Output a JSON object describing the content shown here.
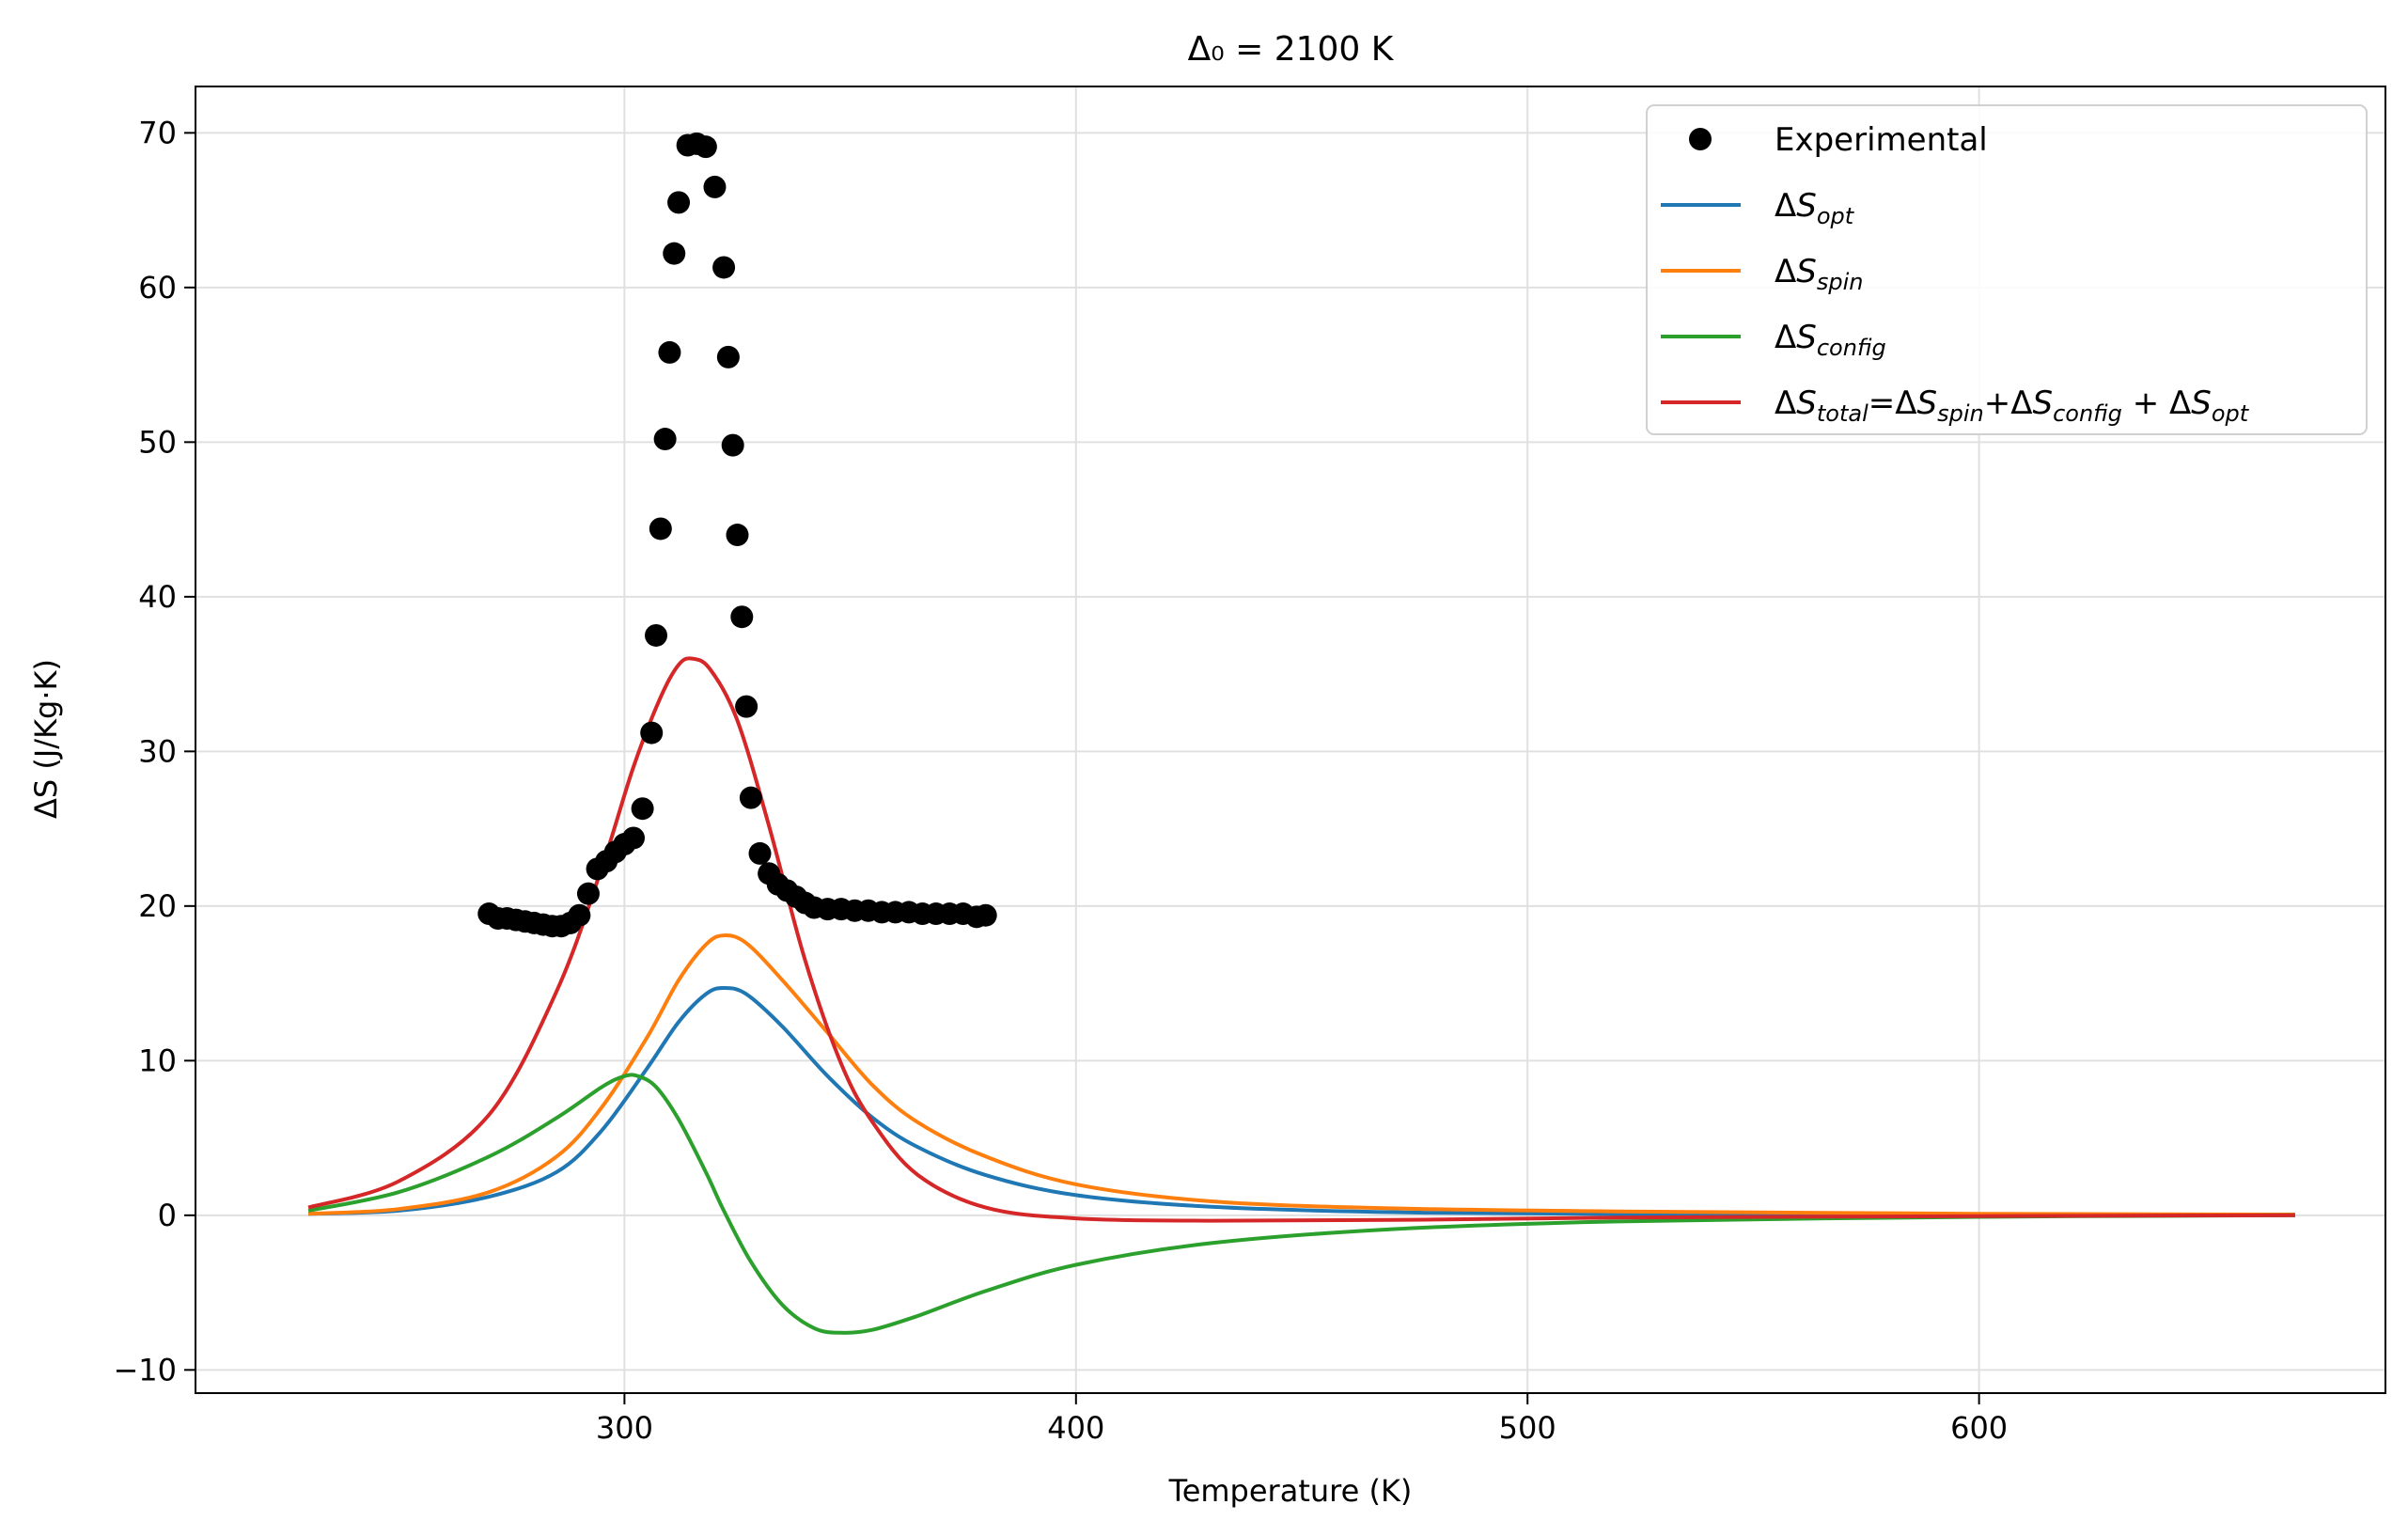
{
  "chart_data": {
    "type": "line",
    "title": "Δ₀ = 2100 K",
    "xlabel": "Temperature (K)",
    "ylabel": "ΔS (J/Kg·K)",
    "xlim": [
      205,
      690
    ],
    "ylim": [
      -11.5,
      73
    ],
    "x_ticks": [
      300,
      400,
      500,
      600
    ],
    "x_tick_labels": [
      "300",
      "400",
      "500",
      "600"
    ],
    "y_ticks": [
      -10,
      0,
      10,
      20,
      30,
      40,
      50,
      60,
      70
    ],
    "y_tick_labels": [
      "−10",
      "0",
      "10",
      "20",
      "30",
      "40",
      "50",
      "60",
      "70"
    ],
    "grid": true,
    "legend_position": "top-right",
    "colors": {
      "opt": "#1f77b4",
      "spin": "#ff7f0e",
      "config": "#2ca02c",
      "total": "#d62728",
      "experimental": "#000000"
    },
    "legend": [
      {
        "key": "experimental",
        "kind": "marker",
        "parts": [
          {
            "t": "Experimental",
            "s": "normal"
          }
        ]
      },
      {
        "key": "opt",
        "kind": "line",
        "parts": [
          {
            "t": "Δ",
            "s": "normal"
          },
          {
            "t": "S",
            "s": "sym"
          },
          {
            "t": "opt",
            "s": "sub"
          }
        ]
      },
      {
        "key": "spin",
        "kind": "line",
        "parts": [
          {
            "t": "Δ",
            "s": "normal"
          },
          {
            "t": "S",
            "s": "sym"
          },
          {
            "t": "spin",
            "s": "sub"
          }
        ]
      },
      {
        "key": "config",
        "kind": "line",
        "parts": [
          {
            "t": "Δ",
            "s": "normal"
          },
          {
            "t": "S",
            "s": "sym"
          },
          {
            "t": "config",
            "s": "sub"
          }
        ]
      },
      {
        "key": "total",
        "kind": "line",
        "parts": [
          {
            "t": "Δ",
            "s": "normal"
          },
          {
            "t": "S",
            "s": "sym"
          },
          {
            "t": "total",
            "s": "sub"
          },
          {
            "t": "=Δ",
            "s": "normal"
          },
          {
            "t": "S",
            "s": "sym"
          },
          {
            "t": "spin",
            "s": "sub"
          },
          {
            "t": "+Δ",
            "s": "normal"
          },
          {
            "t": "S",
            "s": "sym"
          },
          {
            "t": "config",
            "s": "sub"
          },
          {
            "t": " + Δ",
            "s": "normal"
          },
          {
            "t": "S",
            "s": "sym"
          },
          {
            "t": "opt",
            "s": "sub"
          }
        ]
      }
    ],
    "series": [
      {
        "key": "opt",
        "points": [
          [
            230,
            0.1
          ],
          [
            250,
            0.3
          ],
          [
            270,
            1.2
          ],
          [
            285,
            2.8
          ],
          [
            295,
            5.5
          ],
          [
            305,
            9.5
          ],
          [
            312,
            12.5
          ],
          [
            318,
            14.3
          ],
          [
            322,
            14.7
          ],
          [
            327,
            14.3
          ],
          [
            335,
            12.2
          ],
          [
            345,
            9.0
          ],
          [
            355,
            6.3
          ],
          [
            365,
            4.4
          ],
          [
            380,
            2.6
          ],
          [
            400,
            1.3
          ],
          [
            430,
            0.55
          ],
          [
            470,
            0.2
          ],
          [
            520,
            0.08
          ],
          [
            600,
            0.02
          ],
          [
            670,
            0.0
          ]
        ]
      },
      {
        "key": "spin",
        "points": [
          [
            230,
            0.1
          ],
          [
            250,
            0.4
          ],
          [
            270,
            1.5
          ],
          [
            285,
            3.8
          ],
          [
            295,
            7.0
          ],
          [
            305,
            11.5
          ],
          [
            312,
            15.2
          ],
          [
            318,
            17.5
          ],
          [
            322,
            18.1
          ],
          [
            327,
            17.6
          ],
          [
            335,
            15.2
          ],
          [
            345,
            11.8
          ],
          [
            355,
            8.4
          ],
          [
            365,
            6.0
          ],
          [
            380,
            3.8
          ],
          [
            400,
            2.0
          ],
          [
            430,
            0.9
          ],
          [
            470,
            0.45
          ],
          [
            520,
            0.25
          ],
          [
            600,
            0.1
          ],
          [
            670,
            0.05
          ]
        ]
      },
      {
        "key": "config",
        "points": [
          [
            230,
            0.3
          ],
          [
            250,
            1.5
          ],
          [
            270,
            3.8
          ],
          [
            285,
            6.3
          ],
          [
            295,
            8.3
          ],
          [
            300,
            9.0
          ],
          [
            303,
            9.0
          ],
          [
            307,
            8.3
          ],
          [
            312,
            6.2
          ],
          [
            318,
            2.8
          ],
          [
            322,
            0.3
          ],
          [
            328,
            -3.0
          ],
          [
            335,
            -5.8
          ],
          [
            342,
            -7.3
          ],
          [
            348,
            -7.6
          ],
          [
            355,
            -7.4
          ],
          [
            365,
            -6.5
          ],
          [
            380,
            -4.9
          ],
          [
            400,
            -3.2
          ],
          [
            430,
            -1.8
          ],
          [
            470,
            -0.9
          ],
          [
            520,
            -0.4
          ],
          [
            600,
            -0.1
          ],
          [
            670,
            0.0
          ]
        ]
      },
      {
        "key": "total",
        "points": [
          [
            230,
            0.5
          ],
          [
            250,
            2.2
          ],
          [
            270,
            6.5
          ],
          [
            285,
            14.5
          ],
          [
            295,
            22.5
          ],
          [
            302,
            29.0
          ],
          [
            308,
            33.5
          ],
          [
            312,
            35.6
          ],
          [
            315,
            36.0
          ],
          [
            319,
            35.3
          ],
          [
            325,
            32.0
          ],
          [
            332,
            25.2
          ],
          [
            340,
            16.5
          ],
          [
            348,
            9.8
          ],
          [
            355,
            6.0
          ],
          [
            365,
            2.6
          ],
          [
            380,
            0.5
          ],
          [
            400,
            -0.2
          ],
          [
            430,
            -0.35
          ],
          [
            470,
            -0.3
          ],
          [
            520,
            -0.15
          ],
          [
            600,
            -0.05
          ],
          [
            670,
            0.0
          ]
        ]
      }
    ],
    "experimental": {
      "x": [
        270,
        272,
        274,
        276,
        278,
        280,
        282,
        284,
        286,
        288,
        290,
        292,
        294,
        296,
        298,
        300,
        302,
        304,
        306,
        307,
        308,
        309,
        310,
        311,
        312,
        314,
        316,
        318,
        320,
        322,
        323,
        324,
        325,
        326,
        327,
        328,
        330,
        332,
        334,
        336,
        338,
        340,
        342,
        345,
        348,
        351,
        354,
        357,
        360,
        363,
        366,
        369,
        372,
        375,
        378,
        380
      ],
      "y": [
        19.5,
        19.2,
        19.2,
        19.1,
        19.0,
        18.9,
        18.8,
        18.7,
        18.7,
        18.9,
        19.4,
        20.8,
        22.4,
        22.9,
        23.5,
        24.0,
        24.4,
        26.3,
        31.2,
        37.5,
        44.4,
        50.2,
        55.8,
        62.2,
        65.5,
        69.2,
        69.3,
        69.1,
        66.5,
        61.3,
        55.5,
        49.8,
        44.0,
        38.7,
        32.9,
        27.0,
        23.4,
        22.1,
        21.4,
        21.0,
        20.6,
        20.2,
        19.9,
        19.8,
        19.8,
        19.7,
        19.7,
        19.6,
        19.6,
        19.6,
        19.5,
        19.5,
        19.5,
        19.5,
        19.3,
        19.4
      ]
    }
  }
}
